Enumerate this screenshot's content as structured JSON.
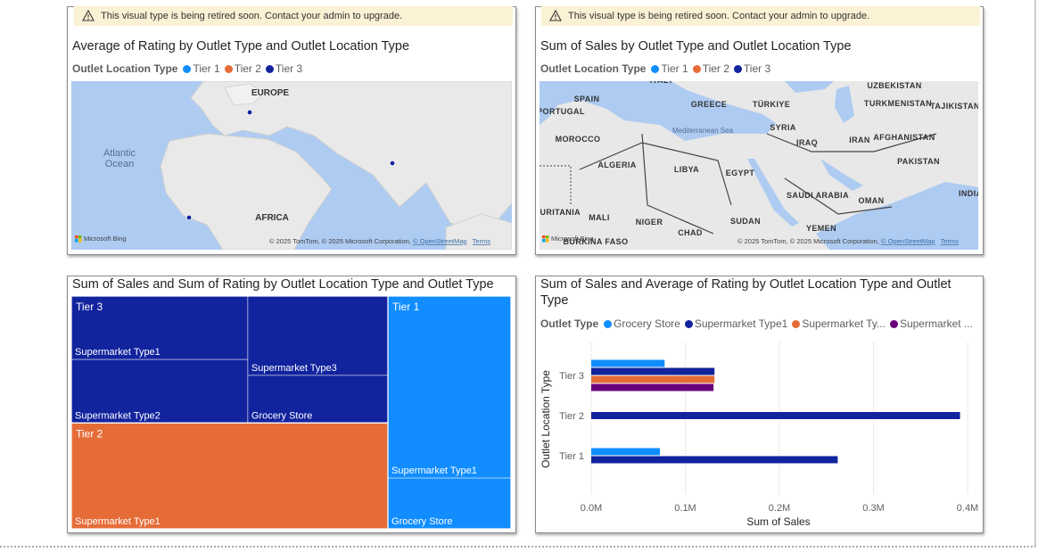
{
  "chart_data": [
    {
      "type": "map",
      "notice": "This visual type is being retired soon. Contact your admin to upgrade.",
      "title": "Average of Rating by Outlet Type and Outlet Location Type",
      "legend_title": "Outlet Location Type",
      "series": [
        {
          "name": "Tier 1",
          "color": "#118DFF"
        },
        {
          "name": "Tier 2",
          "color": "#E66C37"
        },
        {
          "name": "Tier 3",
          "color": "#12239E"
        }
      ],
      "map_labels": [
        "EUROPE",
        "Atlantic",
        "Ocean",
        "AFRICA"
      ],
      "attribution": "Microsoft Bing",
      "copyright": "© 2025 TomTom, © 2025 Microsoft Corporation, ",
      "osm": "© OpenStreetMap",
      "terms": "Terms"
    },
    {
      "type": "map",
      "notice": "This visual type is being retired soon. Contact your admin to upgrade.",
      "title": "Sum of Sales by Outlet Type and Outlet Location Type",
      "legend_title": "Outlet Location Type",
      "series": [
        {
          "name": "Tier 1",
          "color": "#118DFF"
        },
        {
          "name": "Tier 2",
          "color": "#E66C37"
        },
        {
          "name": "Tier 3",
          "color": "#12239E"
        }
      ],
      "map_labels": [
        "ITALY",
        "SPAIN",
        "PORTUGAL",
        "GREECE",
        "TÜRKIYE",
        "UZBEKISTAN",
        "TURKMENISTAN",
        "TAJIKISTAN",
        "Mediterranean Sea",
        "SYRIA",
        "IRAQ",
        "IRAN",
        "AFGHANISTAN",
        "MOROCCO",
        "ALGERIA",
        "LIBYA",
        "EGYPT",
        "PAKISTAN",
        "SAUDI ARABIA",
        "OMAN",
        "INDIA",
        "MAURITANIA",
        "MALI",
        "NIGER",
        "SUDAN",
        "CHAD",
        "YEMEN",
        "BURKINA FASO"
      ],
      "attribution": "Microsoft Bing",
      "copyright": "© 2025 TomTom, © 2025 Microsoft Corporation, ",
      "osm": "© OpenStreetMap",
      "terms": "Terms"
    },
    {
      "type": "treemap",
      "title": "Sum of Sales and Sum of Rating by Outlet Location Type and Outlet Type",
      "groups": [
        {
          "name": "Tier 3",
          "color": "#12239E",
          "children": [
            {
              "name": "Supermarket Type1",
              "value": 131000
            },
            {
              "name": "Supermarket Type2",
              "value": 131000
            },
            {
              "name": "Supermarket Type3",
              "value": 130000
            },
            {
              "name": "Grocery Store",
              "value": 78000
            }
          ]
        },
        {
          "name": "Tier 2",
          "color": "#E66C37",
          "children": [
            {
              "name": "Supermarket Type1",
              "value": 392000
            }
          ]
        },
        {
          "name": "Tier 1",
          "color": "#118DFF",
          "children": [
            {
              "name": "Supermarket Type1",
              "value": 262000
            },
            {
              "name": "Grocery Store",
              "value": 73000
            }
          ]
        }
      ]
    },
    {
      "type": "bar",
      "title": "Sum of Sales and Average of Rating by Outlet Location Type and Outlet Type",
      "legend_title": "Outlet Type",
      "categories": [
        "Tier 3",
        "Tier 2",
        "Tier 1"
      ],
      "series": [
        {
          "name": "Grocery Store",
          "color": "#118DFF",
          "values": [
            78000,
            null,
            73000
          ]
        },
        {
          "name": "Supermarket Type1",
          "color": "#12239E",
          "values": [
            131000,
            392000,
            262000
          ]
        },
        {
          "name": "Supermarket Ty...",
          "color": "#E66C37",
          "values": [
            131000,
            null,
            null
          ]
        },
        {
          "name": "Supermarket ...",
          "color": "#6B007B",
          "values": [
            130000,
            null,
            null
          ]
        }
      ],
      "xlim": [
        0,
        400000
      ],
      "xticks": [
        {
          "value": 0,
          "label": "0.0M"
        },
        {
          "value": 100000,
          "label": "0.1M"
        },
        {
          "value": 200000,
          "label": "0.2M"
        },
        {
          "value": 300000,
          "label": "0.3M"
        },
        {
          "value": 400000,
          "label": "0.4M"
        }
      ],
      "x_label": "Sum of Sales",
      "y_label": "Outlet Location Type",
      "grid": true
    }
  ]
}
